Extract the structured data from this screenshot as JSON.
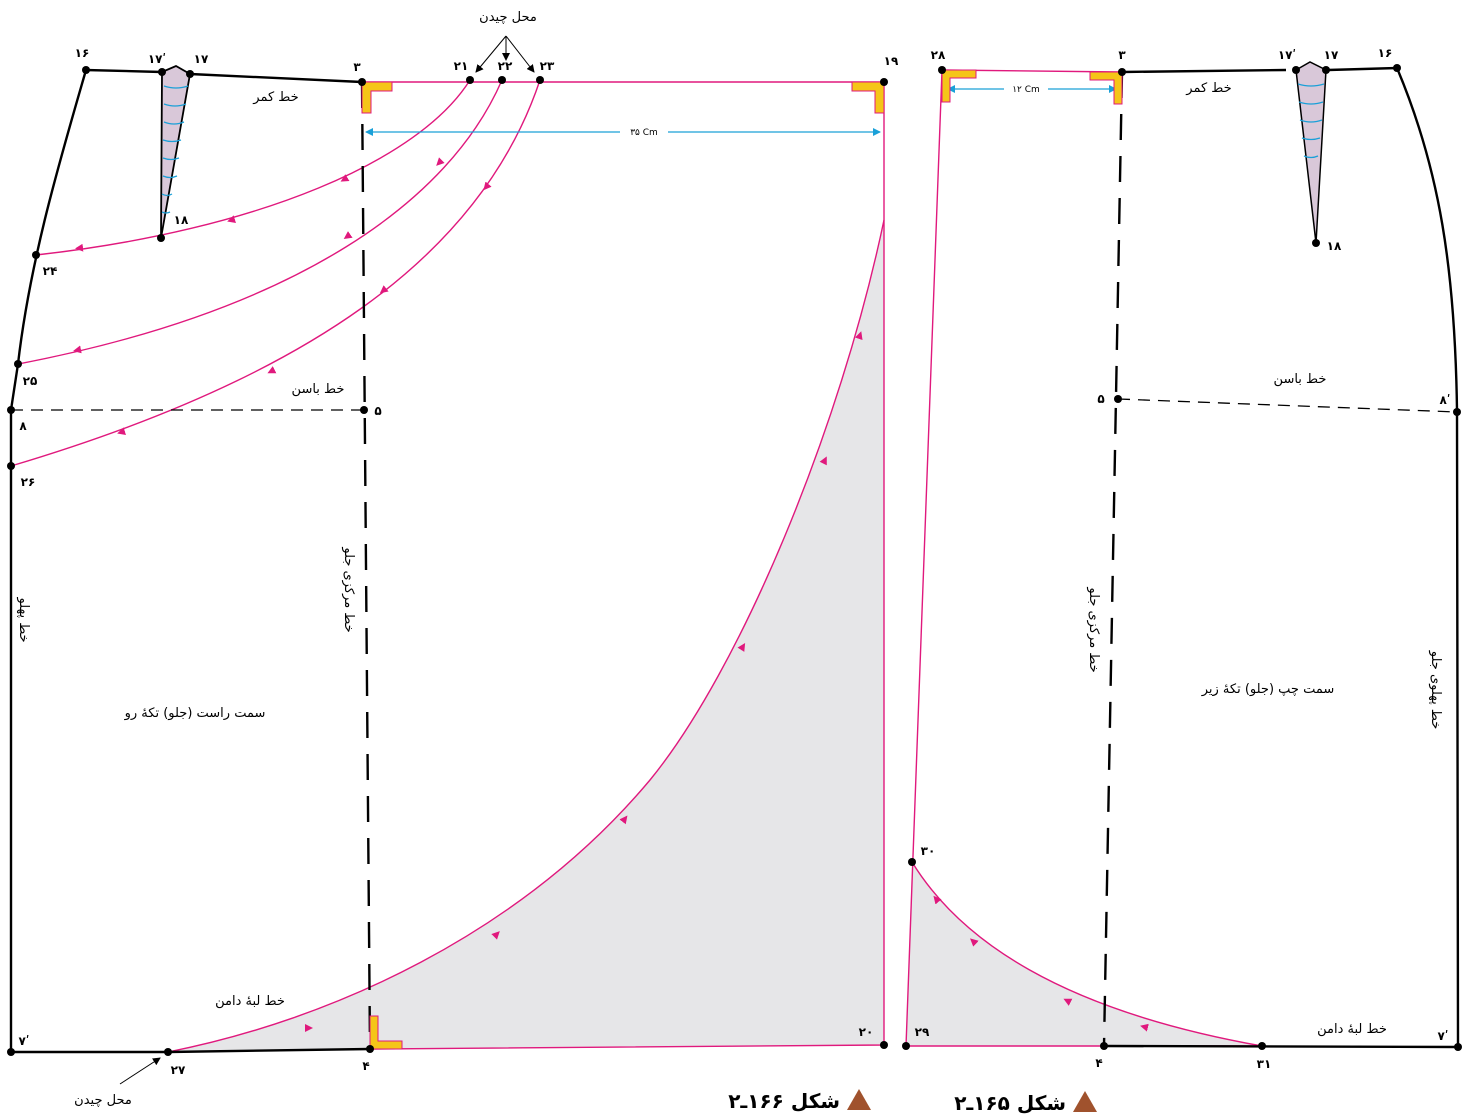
{
  "labels": {
    "lay_place": "محل چیدن",
    "waist_line": "خط کمر",
    "hip_line": "خط باسن",
    "center_front_line": "خط مرکزی جلو",
    "side_line": "خط پهلو",
    "front_side_line": "خط پهلوی جلو",
    "hem_line": "خط لبهٔ دامن",
    "right_piece": "سمت راست (جلو) تکهٔ رو",
    "left_piece": "سمت چپ (جلو) تکهٔ زیر"
  },
  "dimensions": {
    "width_35": "۳۵ Cm",
    "width_12": "۱۲ Cm"
  },
  "captions": {
    "fig166": "شکل ۱۶۶ـ۲",
    "fig165": "شکل ۱۶۵ـ۲"
  },
  "points": {
    "p3": "۳",
    "p4": "۴",
    "p5": "۵",
    "p7p": "۷ʹ",
    "p8": "۸",
    "p8p": "۸ʹ",
    "p16": "۱۶",
    "p17": "۱۷",
    "p17p": "۱۷ʹ",
    "p18": "۱۸",
    "p19": "۱۹",
    "p20": "۲۰",
    "p21": "۲۱",
    "p22": "۲۲",
    "p23": "۲۳",
    "p24": "۲۴",
    "p25": "۲۵",
    "p26": "۲۶",
    "p27": "۲۷",
    "p28": "۲۸",
    "p29": "۲۹",
    "p30": "۳۰",
    "p31": "۳۱"
  },
  "colors": {
    "outline": "#000000",
    "construction": "#e0197d",
    "dimension": "#1aa0d8",
    "fill_gray": "#e6e6e8",
    "corner_mark": "#f5c518",
    "caption_triangle": "#a0522d"
  }
}
